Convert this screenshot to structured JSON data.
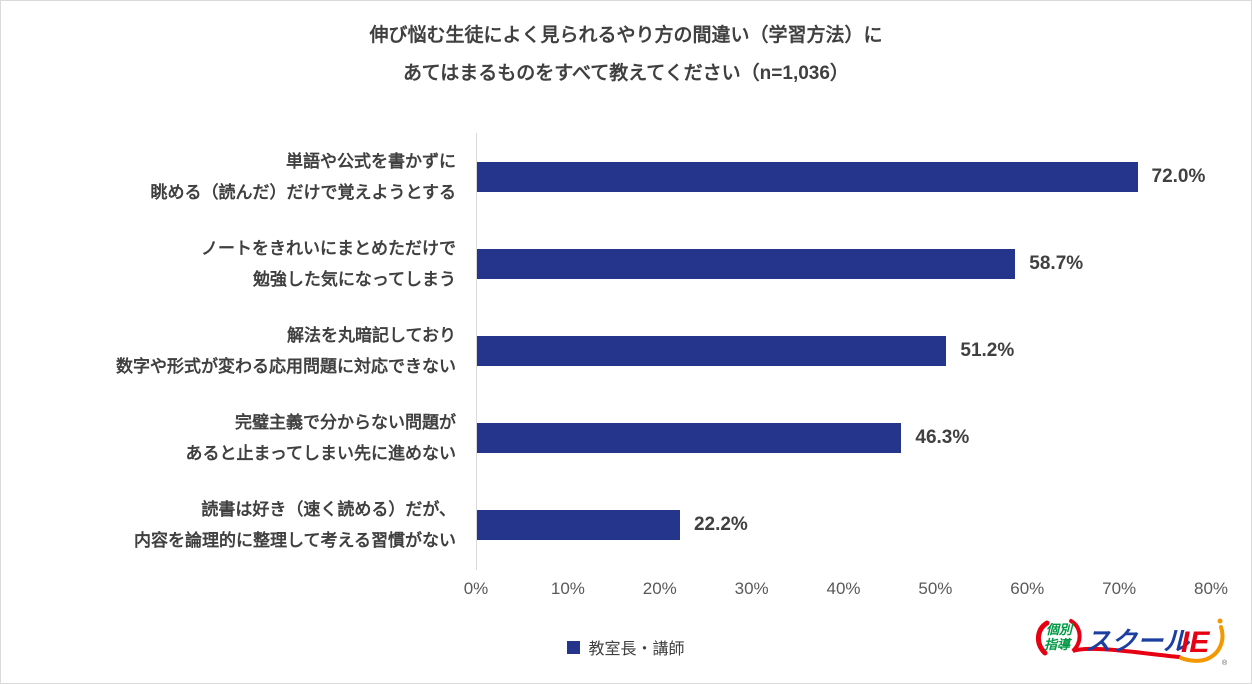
{
  "title": {
    "line1": "伸び悩む生徒によく見られるやり方の間違い（学習方法）に",
    "line2": "あてはまるものをすべて教えてください（n=1,036）"
  },
  "chart_data": {
    "type": "bar",
    "orientation": "horizontal",
    "title": "伸び悩む生徒によく見られるやり方の間違い（学習方法）に あてはまるものをすべて教えてください（n=1,036）",
    "sample_size": "n=1,036",
    "categories": [
      [
        "単語や公式を書かずに",
        "眺める（読んだ）だけで覚えようとする"
      ],
      [
        "ノートをきれいにまとめただけで",
        "勉強した気になってしまう"
      ],
      [
        "解法を丸暗記しており",
        "数字や形式が変わる応用問題に対応できない"
      ],
      [
        "完璧主義で分からない問題が",
        "あると止まってしまい先に進めない"
      ],
      [
        "読書は好き（速く読める）だが、",
        "内容を論理的に整理して考える習慣がない"
      ]
    ],
    "values": [
      72.0,
      58.7,
      51.2,
      46.3,
      22.2
    ],
    "value_labels": [
      "72.0%",
      "58.7%",
      "51.2%",
      "46.3%",
      "22.2%"
    ],
    "xlim": [
      0,
      80
    ],
    "x_ticks": [
      "0%",
      "10%",
      "20%",
      "30%",
      "40%",
      "50%",
      "60%",
      "70%",
      "80%"
    ],
    "grid": "off",
    "bar_color": "#26358C",
    "axis_line_color": "#d9d9d9",
    "legend": {
      "label": "教室長・講師",
      "color": "#26358C",
      "position": "bottom"
    }
  },
  "logo": {
    "badge_line1": "個別",
    "badge_line2": "指導",
    "brand_name": "スクール",
    "brand_suffix": "IE",
    "registered_mark": "®",
    "colors": {
      "red": "#e60012",
      "green": "#009944",
      "blue": "#1b3fa0",
      "orange": "#f39800"
    }
  }
}
